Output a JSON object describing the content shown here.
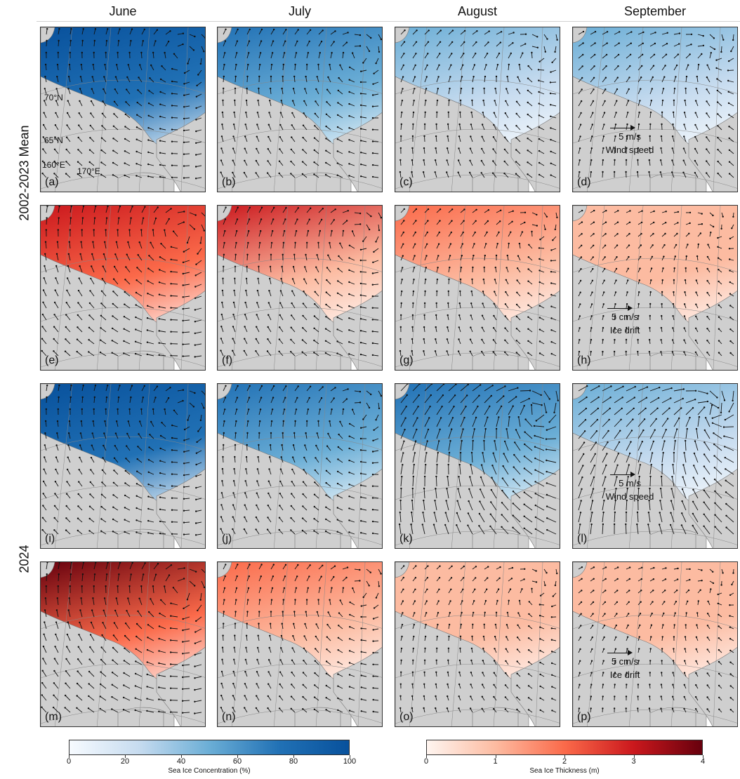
{
  "columns": [
    "June",
    "July",
    "August",
    "September"
  ],
  "rows": [
    "2002-2023  Mean",
    "2024"
  ],
  "panel_labels": [
    "(a)",
    "(b)",
    "(c)",
    "(d)",
    "(e)",
    "(f)",
    "(g)",
    "(h)",
    "(i)",
    "(j)",
    "(k)",
    "(l)",
    "(m)",
    "(n)",
    "(o)",
    "(p)"
  ],
  "coord_labels": {
    "lat70": "70°N",
    "lat65": "65°N",
    "lon160": "160°E",
    "lon170": "170°E"
  },
  "legends": {
    "wind_value": "5 m/s",
    "wind_label": "Wind speed",
    "drift_value": "5 cm/s",
    "drift_label": "Ice drift"
  },
  "colorbars": {
    "concentration": {
      "label": "Sea Ice Concentration (%)",
      "ticks": [
        "0",
        "20",
        "40",
        "60",
        "80",
        "100"
      ],
      "colors": [
        "#f7fbff",
        "#c6dbef",
        "#6baed6",
        "#2171b5",
        "#08519c"
      ]
    },
    "thickness": {
      "label": "Sea Ice Thickness (m)",
      "ticks": [
        "0",
        "1",
        "2",
        "3",
        "4"
      ],
      "colors": [
        "#fff5f0",
        "#fcbba1",
        "#fb6a4a",
        "#cb181d",
        "#67000d"
      ]
    }
  },
  "panel_intensity": {
    "concentration": [
      0.85,
      0.7,
      0.35,
      0.3,
      0.85,
      0.75,
      0.6,
      0.4
    ],
    "thickness": [
      0.55,
      0.4,
      0.25,
      0.12,
      0.6,
      0.3,
      0.15,
      0.08
    ]
  }
}
